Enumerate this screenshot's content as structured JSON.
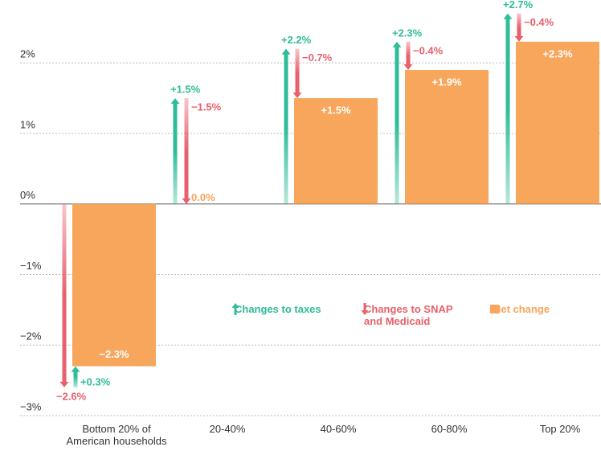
{
  "chart_data": {
    "type": "waterfall-arrows",
    "categories": [
      "Bottom 20% of American households",
      "20-40%",
      "40-60%",
      "60-80%",
      "Top 20%"
    ],
    "series": [
      {
        "name": "Changes to taxes",
        "color": "#2ebd98",
        "values": [
          0.3,
          1.5,
          2.2,
          2.3,
          2.7
        ],
        "value_labels": [
          "+0.3%",
          "+1.5%",
          "+2.2%",
          "+2.3%",
          "+2.7%"
        ]
      },
      {
        "name": "Changes to SNAP and Medicaid",
        "color": "#e8606b",
        "values": [
          -2.6,
          -1.5,
          -0.7,
          -0.4,
          -0.4
        ],
        "value_labels": [
          "−2.6%",
          "−1.5%",
          "−0.7%",
          "−0.4%",
          "−0.4%"
        ]
      },
      {
        "name": "Net change",
        "color": "#f7a65c",
        "values": [
          -2.3,
          0.0,
          1.5,
          1.9,
          2.3
        ],
        "value_labels": [
          "−2.3%",
          "0.0%",
          "+1.5%",
          "+1.9%",
          "+2.3%"
        ]
      }
    ],
    "ylim": [
      -3,
      2.8
    ],
    "yticks": [
      {
        "value": -3,
        "label": "−3%"
      },
      {
        "value": -2,
        "label": "−2%"
      },
      {
        "value": -1,
        "label": "−1%"
      },
      {
        "value": 0,
        "label": "0%"
      },
      {
        "value": 1,
        "label": "1%"
      },
      {
        "value": 2,
        "label": "2%"
      }
    ],
    "grid": true
  }
}
